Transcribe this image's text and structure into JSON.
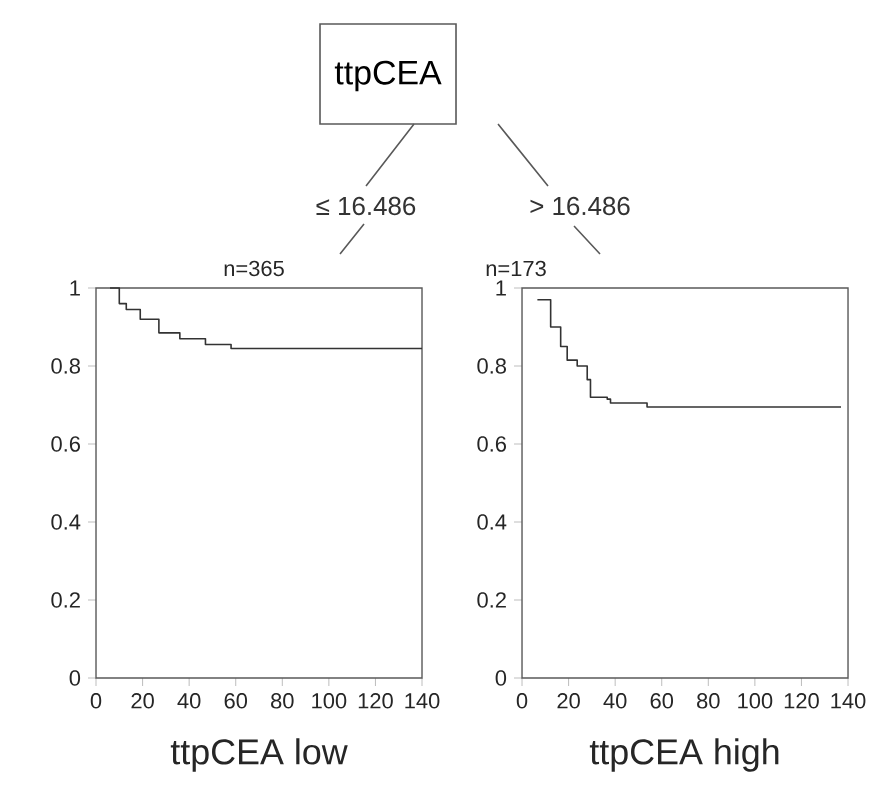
{
  "chart_data": [
    {
      "type": "other",
      "title": "ttpCEA",
      "annotations": [
        "≤ 16.486",
        "> 16.486"
      ]
    },
    {
      "type": "step",
      "title": "n=365",
      "xlabel": "ttpCEA low",
      "color": "#333333",
      "x": [
        6,
        10,
        13,
        19,
        27,
        36,
        47,
        58,
        140
      ],
      "values": [
        1,
        0.96,
        0.945,
        0.92,
        0.885,
        0.87,
        0.855,
        0.845,
        0.845
      ],
      "xlim": [
        0,
        140
      ],
      "ylim": [
        0,
        1
      ],
      "xticks": [
        0,
        20,
        40,
        60,
        80,
        100,
        120,
        140
      ],
      "yticks": [
        0,
        0.2,
        0.4,
        0.6,
        0.8,
        1
      ]
    },
    {
      "type": "step",
      "title": "n=173",
      "xlabel": "ttpCEA high",
      "color": "#333333",
      "x": [
        6.6,
        12.3,
        16.6,
        19.4,
        23.7,
        28,
        29.4,
        36.6,
        38,
        52,
        53.7,
        137
      ],
      "values": [
        0.97,
        0.9,
        0.85,
        0.815,
        0.8,
        0.765,
        0.72,
        0.715,
        0.705,
        0.705,
        0.695,
        0.695
      ],
      "xlim": [
        0,
        140
      ],
      "ylim": [
        0,
        1
      ],
      "xticks": [
        0,
        20,
        40,
        60,
        80,
        100,
        120,
        140
      ],
      "yticks": [
        0,
        0.2,
        0.4,
        0.6,
        0.8,
        1
      ]
    }
  ]
}
